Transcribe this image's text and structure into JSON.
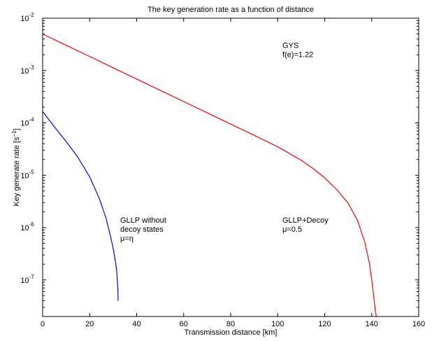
{
  "chart_data": {
    "type": "line",
    "title": "The key generation rate as a function of distance",
    "xlabel": "Transmission distance [km]",
    "ylabel": "Key generate rate [s",
    "ylabel_superscript": "−1",
    "ylabel_suffix": "]",
    "xlim": [
      0,
      160
    ],
    "ylim": [
      2e-08,
      0.01
    ],
    "yscale": "log",
    "grid": false,
    "legend": "none",
    "x_ticks": [
      0,
      20,
      40,
      60,
      80,
      100,
      120,
      140,
      160
    ],
    "x_tick_labels": [
      "0",
      "20",
      "40",
      "60",
      "80",
      "100",
      "120",
      "140",
      "160"
    ],
    "y_tick_exponents": [
      -7,
      -6,
      -5,
      -4,
      -3,
      -2
    ],
    "y_tick_base": "10",
    "series": [
      {
        "color": "#ff0000",
        "x": [
          0,
          10,
          20,
          30,
          40,
          50,
          60,
          70,
          80,
          90,
          100,
          110,
          115,
          120,
          125,
          130,
          134,
          137,
          139,
          140,
          141,
          141.5,
          141.8,
          142
        ],
        "y": [
          0.005,
          0.00305,
          0.00186,
          0.00113,
          0.00069,
          0.00042,
          0.000256,
          0.000156,
          9.5e-05,
          5.8e-05,
          3.5e-05,
          1.93e-05,
          1.35e-05,
          8.9e-06,
          5.4e-06,
          2.9e-06,
          1.35e-06,
          5.4e-07,
          2.1e-07,
          1e-07,
          4.3e-08,
          2.7e-08,
          2.2e-08,
          2e-08
        ]
      },
      {
        "color": "#0000ff",
        "x": [
          0,
          5,
          10,
          15,
          20,
          24,
          27,
          29,
          30,
          31,
          31.5,
          32,
          32.1
        ],
        "y": [
          0.000165,
          8.4e-05,
          4.4e-05,
          2.2e-05,
          9.3e-06,
          3.7e-06,
          1.5e-06,
          6.4e-07,
          4e-07,
          2.2e-07,
          1.5e-07,
          6.5e-08,
          4e-08
        ]
      }
    ],
    "annotations": [
      {
        "id": "gys",
        "lines": [
          "GYS",
          "f(e)=1.22"
        ],
        "x": 102,
        "y": 0.0027
      },
      {
        "id": "gllp-no-decoy",
        "lines": [
          "GLLP without",
          "decoy states",
          "μ=η"
        ],
        "x": 33,
        "y": 1.25e-06
      },
      {
        "id": "gllp-decoy",
        "lines": [
          "GLLP+Decoy",
          "μ=0.5"
        ],
        "x": 102,
        "y": 1.25e-06
      }
    ]
  }
}
